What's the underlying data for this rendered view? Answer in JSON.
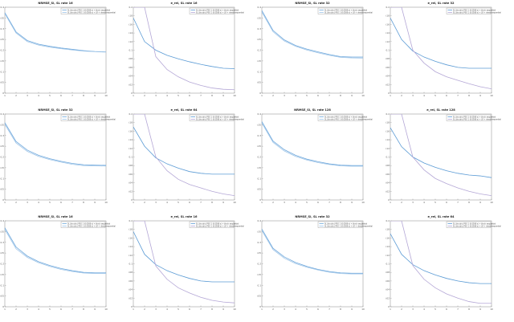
{
  "chart_data": [
    {
      "type": "line",
      "title": "NRMSE_Sl, SL rate 16",
      "x": [
        1,
        2,
        3,
        4,
        5,
        6,
        7,
        8,
        9,
        10
      ],
      "xticks": [
        "1",
        "2",
        "3",
        "4",
        "5",
        "6",
        "7",
        "8",
        "9",
        "10"
      ],
      "yticks": [
        "0.4",
        "0.35",
        "0.3",
        "0.25",
        "0.2",
        "0.15",
        "0.1",
        "0.05",
        "0"
      ],
      "ylim": [
        0,
        0.4
      ],
      "legend_position": "top-right",
      "series": [
        {
          "name": "SL (bicubic) PSO 1 (0.0588 s) + block sequential",
          "color": "#6fa8dc",
          "values": [
            0.375,
            0.285,
            0.245,
            0.228,
            0.218,
            0.21,
            0.204,
            0.198,
            0.194,
            0.192
          ]
        },
        {
          "name": "SL (bicubic) PSO 1 (0.0588 s) + LR + dense sequential",
          "color": "#9fc5e8",
          "values": [
            0.37,
            0.28,
            0.24,
            0.224,
            0.214,
            0.207,
            0.201,
            0.196,
            0.193,
            0.191
          ]
        }
      ]
    },
    {
      "type": "line",
      "title": "e_rel, SL rate 16",
      "x": [
        1,
        2,
        3,
        4,
        5,
        6,
        7,
        8,
        9,
        10
      ],
      "xticks": [
        "1",
        "2",
        "3",
        "4",
        "5",
        "6",
        "7",
        "8",
        "9",
        "10"
      ],
      "yticks": [
        "0.2",
        "0.18",
        "0.16",
        "0.14",
        "0.12",
        "0.1",
        "0.08",
        "0.06",
        "0.04",
        "0.02",
        "0"
      ],
      "ylim": [
        0,
        0.2
      ],
      "legend_position": "top-right",
      "series": [
        {
          "name": "SL (bicubic) PSO 1 (0.0588 s) + block sequential",
          "color": "#5b9bd5",
          "values": [
            0.175,
            0.12,
            0.1,
            0.088,
            0.08,
            0.073,
            0.067,
            0.062,
            0.058,
            0.057
          ]
        },
        {
          "name": "SL (bicubic) PSO 1 (0.0588 s) + LR + dense sequential",
          "color": "#b4a7d6",
          "values": [
            0.2,
            0.2,
            0.085,
            0.055,
            0.038,
            0.026,
            0.018,
            0.012,
            0.009,
            0.008
          ]
        }
      ]
    },
    {
      "type": "line",
      "title": "NRMSE_Sl, SL rate 32",
      "x": [
        1,
        2,
        3,
        4,
        5,
        6,
        7,
        8,
        9,
        10
      ],
      "xticks": [
        "1",
        "2",
        "3",
        "4",
        "5",
        "6",
        "7",
        "8",
        "9",
        "10"
      ],
      "yticks": [
        "0.4",
        "0.35",
        "0.3",
        "0.25",
        "0.2",
        "0.15",
        "0.1",
        "0.05",
        "0"
      ],
      "ylim": [
        0,
        0.4
      ],
      "legend_position": "top-right",
      "series": [
        {
          "name": "SL (bicubic) PSO 1 (0.0588 s) + block sequential",
          "color": "#6fa8dc",
          "values": [
            0.385,
            0.292,
            0.248,
            0.222,
            0.205,
            0.192,
            0.18,
            0.17,
            0.168,
            0.168
          ]
        },
        {
          "name": "SL (bicubic) PSO 1 (0.0588 s) + LR + dense sequential",
          "color": "#9fc5e8",
          "values": [
            0.378,
            0.286,
            0.243,
            0.218,
            0.201,
            0.188,
            0.176,
            0.167,
            0.164,
            0.163
          ]
        }
      ]
    },
    {
      "type": "line",
      "title": "e_rel, SL rate 32",
      "x": [
        1,
        2,
        3,
        4,
        5,
        6,
        7,
        8,
        9,
        10
      ],
      "xticks": [
        "1",
        "2",
        "3",
        "4",
        "5",
        "6",
        "7",
        "8",
        "9",
        "10"
      ],
      "yticks": [
        "0.2",
        "0.18",
        "0.16",
        "0.14",
        "0.12",
        "0.1",
        "0.08",
        "0.06",
        "0.04",
        "0.02",
        "0"
      ],
      "ylim": [
        0,
        0.2
      ],
      "legend_position": "top-right",
      "series": [
        {
          "name": "SL (bicubic) PSO 1 (0.0588 s) + block sequential",
          "color": "#5b9bd5",
          "values": [
            0.175,
            0.125,
            0.098,
            0.084,
            0.074,
            0.066,
            0.06,
            0.058,
            0.058,
            0.058
          ]
        },
        {
          "name": "SL (bicubic) PSO 1 (0.0588 s) + LR + dense sequential",
          "color": "#b4a7d6",
          "values": [
            0.2,
            0.2,
            0.1,
            0.07,
            0.05,
            0.038,
            0.03,
            0.022,
            0.015,
            0.01
          ]
        }
      ]
    },
    {
      "type": "line",
      "title": "NRMSE_Sl, SL rate 32",
      "x": [
        1,
        2,
        3,
        4,
        5,
        6,
        7,
        8,
        9,
        10
      ],
      "xticks": [
        "1",
        "2",
        "3",
        "4",
        "5",
        "6",
        "7",
        "8",
        "9",
        "10"
      ],
      "yticks": [
        "0.4",
        "0.35",
        "0.3",
        "0.25",
        "0.2",
        "0.15",
        "0.1",
        "0.05",
        "0"
      ],
      "ylim": [
        0,
        0.4
      ],
      "legend_position": "top-right",
      "series": [
        {
          "name": "SL (bicubic) PSO 1 (0.0588 s) + block sequential",
          "color": "#6fa8dc",
          "values": [
            0.36,
            0.272,
            0.232,
            0.208,
            0.192,
            0.18,
            0.17,
            0.164,
            0.162,
            0.161
          ]
        },
        {
          "name": "SL (bicubic) PSO 1 (0.0588 s) + LR + dense sequential",
          "color": "#9fc5e8",
          "values": [
            0.352,
            0.265,
            0.226,
            0.203,
            0.188,
            0.176,
            0.166,
            0.16,
            0.159,
            0.158
          ]
        }
      ]
    },
    {
      "type": "line",
      "title": "e_rel, SL rate 64",
      "x": [
        1,
        2,
        3,
        4,
        5,
        6,
        7,
        8,
        9,
        10
      ],
      "xticks": [
        "1",
        "2",
        "3",
        "4",
        "5",
        "6",
        "7",
        "8",
        "9",
        "10"
      ],
      "yticks": [
        "0.2",
        "0.18",
        "0.16",
        "0.14",
        "0.12",
        "0.1",
        "0.08",
        "0.06",
        "0.04",
        "0.02",
        "0"
      ],
      "ylim": [
        0,
        0.2
      ],
      "legend_position": "top-right",
      "series": [
        {
          "name": "SL (bicubic) PSO 1 (0.0588 s) + block sequential",
          "color": "#5b9bd5",
          "values": [
            0.17,
            0.125,
            0.098,
            0.084,
            0.074,
            0.066,
            0.062,
            0.06,
            0.06,
            0.06
          ]
        },
        {
          "name": "SL (bicubic) PSO 1 (0.0588 s) + LR + dense sequential",
          "color": "#b4a7d6",
          "values": [
            0.2,
            0.2,
            0.1,
            0.068,
            0.048,
            0.036,
            0.028,
            0.02,
            0.014,
            0.01
          ]
        }
      ]
    },
    {
      "type": "line",
      "title": "NRMSE_Sl, SL rate 128",
      "x": [
        1,
        2,
        3,
        4,
        5,
        6,
        7,
        8,
        9,
        10
      ],
      "xticks": [
        "1",
        "2",
        "3",
        "4",
        "5",
        "6",
        "7",
        "8",
        "9",
        "10"
      ],
      "yticks": [
        "0.4",
        "0.35",
        "0.3",
        "0.25",
        "0.2",
        "0.15",
        "0.1",
        "0.05",
        "0"
      ],
      "ylim": [
        0,
        0.4
      ],
      "legend_position": "top-right",
      "series": [
        {
          "name": "SL (bicubic) PSO 1 (0.0588 s) + block sequential",
          "color": "#6fa8dc",
          "values": [
            0.365,
            0.274,
            0.234,
            0.208,
            0.19,
            0.178,
            0.168,
            0.162,
            0.16,
            0.16
          ]
        },
        {
          "name": "SL (bicubic) PSO 1 (0.0588 s) + LR + dense sequential",
          "color": "#9fc5e8",
          "values": [
            0.358,
            0.268,
            0.228,
            0.203,
            0.186,
            0.174,
            0.165,
            0.159,
            0.157,
            0.157
          ]
        }
      ]
    },
    {
      "type": "line",
      "title": "e_rel, SL rate 128",
      "x": [
        1,
        2,
        3,
        4,
        5,
        6,
        7,
        8,
        9,
        10
      ],
      "xticks": [
        "1",
        "2",
        "3",
        "4",
        "5",
        "6",
        "7",
        "8",
        "9",
        "10"
      ],
      "yticks": [
        "0.2",
        "0.18",
        "0.16",
        "0.14",
        "0.12",
        "0.1",
        "0.08",
        "0.06",
        "0.04",
        "0.02",
        "0"
      ],
      "ylim": [
        0,
        0.2
      ],
      "legend_position": "top-right",
      "series": [
        {
          "name": "SL (bicubic) PSO 1 (0.0588 s) + block sequential",
          "color": "#5b9bd5",
          "values": [
            0.168,
            0.124,
            0.1,
            0.086,
            0.076,
            0.068,
            0.062,
            0.058,
            0.056,
            0.052
          ]
        },
        {
          "name": "SL (bicubic) PSO 1 (0.0588 s) + LR + dense sequential",
          "color": "#b4a7d6",
          "values": [
            0.2,
            0.2,
            0.1,
            0.07,
            0.05,
            0.038,
            0.028,
            0.02,
            0.014,
            0.01
          ]
        }
      ]
    },
    {
      "type": "line",
      "title": "NRMSE_Sl, SL rate 16",
      "x": [
        1,
        2,
        3,
        4,
        5,
        6,
        7,
        8,
        9,
        10
      ],
      "xticks": [
        "1",
        "2",
        "3",
        "4",
        "5",
        "6",
        "7",
        "8",
        "9",
        "10"
      ],
      "yticks": [
        "0.4",
        "0.35",
        "0.3",
        "0.25",
        "0.2",
        "0.15",
        "0.1",
        "0.05",
        "0"
      ],
      "ylim": [
        0,
        0.4
      ],
      "legend_position": "top-right",
      "series": [
        {
          "name": "SL (bicubic) PSO 1 (0.0588 s) + block sequential",
          "color": "#6fa8dc",
          "values": [
            0.368,
            0.278,
            0.236,
            0.21,
            0.192,
            0.178,
            0.168,
            0.16,
            0.158,
            0.158
          ]
        },
        {
          "name": "SL (bicubic) PSO 1 (0.0588 s) + LR + dense sequential",
          "color": "#9fc5e8",
          "values": [
            0.36,
            0.27,
            0.23,
            0.205,
            0.188,
            0.174,
            0.164,
            0.157,
            0.155,
            0.155
          ]
        }
      ]
    },
    {
      "type": "line",
      "title": "e_rel, SL rate 16",
      "x": [
        1,
        2,
        3,
        4,
        5,
        6,
        7,
        8,
        9,
        10
      ],
      "xticks": [
        "1",
        "2",
        "3",
        "4",
        "5",
        "6",
        "7",
        "8",
        "9",
        "10"
      ],
      "yticks": [
        "0.2",
        "0.18",
        "0.16",
        "0.14",
        "0.12",
        "0.1",
        "0.08",
        "0.06",
        "0.04",
        "0.02",
        "0"
      ],
      "ylim": [
        0,
        0.2
      ],
      "legend_position": "top-right",
      "series": [
        {
          "name": "SL (bicubic) PSO 1 (0.0588 s) + block sequential",
          "color": "#5b9bd5",
          "values": [
            0.175,
            0.122,
            0.098,
            0.084,
            0.074,
            0.066,
            0.06,
            0.058,
            0.058,
            0.058
          ]
        },
        {
          "name": "SL (bicubic) PSO 1 (0.0588 s) + LR + dense sequential",
          "color": "#b4a7d6",
          "values": [
            0.2,
            0.2,
            0.095,
            0.064,
            0.044,
            0.032,
            0.022,
            0.015,
            0.011,
            0.009
          ]
        }
      ]
    },
    {
      "type": "line",
      "title": "NRMSE_Sl, SL rate 32",
      "x": [
        1,
        2,
        3,
        4,
        5,
        6,
        7,
        8,
        9,
        10
      ],
      "xticks": [
        "1",
        "2",
        "3",
        "4",
        "5",
        "6",
        "7",
        "8",
        "9",
        "10"
      ],
      "yticks": [
        "0.4",
        "0.35",
        "0.3",
        "0.25",
        "0.2",
        "0.15",
        "0.1",
        "0.05",
        "0"
      ],
      "ylim": [
        0,
        0.4
      ],
      "legend_position": "top-right",
      "series": [
        {
          "name": "SL (bicubic) PSO 1 (0.0588 s) + block sequential",
          "color": "#6fa8dc",
          "values": [
            0.362,
            0.272,
            0.232,
            0.206,
            0.188,
            0.174,
            0.164,
            0.158,
            0.156,
            0.156
          ]
        },
        {
          "name": "SL (bicubic) PSO 1 (0.0588 s) + LR + dense sequential",
          "color": "#9fc5e8",
          "values": [
            0.355,
            0.266,
            0.226,
            0.201,
            0.184,
            0.171,
            0.161,
            0.155,
            0.153,
            0.153
          ]
        }
      ]
    },
    {
      "type": "line",
      "title": "e_rel, SL rate 64",
      "x": [
        1,
        2,
        3,
        4,
        5,
        6,
        7,
        8,
        9,
        10
      ],
      "xticks": [
        "1",
        "2",
        "3",
        "4",
        "5",
        "6",
        "7",
        "8",
        "9",
        "10"
      ],
      "yticks": [
        "0.2",
        "0.18",
        "0.16",
        "0.14",
        "0.12",
        "0.1",
        "0.08",
        "0.06",
        "0.04",
        "0.02",
        "0"
      ],
      "ylim": [
        0,
        0.2
      ],
      "legend_position": "top-right",
      "series": [
        {
          "name": "SL (bicubic) PSO 1 (0.0588 s) + block sequential",
          "color": "#5b9bd5",
          "values": [
            0.17,
            0.122,
            0.098,
            0.084,
            0.074,
            0.066,
            0.06,
            0.056,
            0.054,
            0.054
          ]
        },
        {
          "name": "SL (bicubic) PSO 1 (0.0588 s) + LR + dense sequential",
          "color": "#b4a7d6",
          "values": [
            0.2,
            0.2,
            0.096,
            0.064,
            0.044,
            0.03,
            0.02,
            0.012,
            0.008,
            0.008
          ]
        }
      ]
    }
  ]
}
